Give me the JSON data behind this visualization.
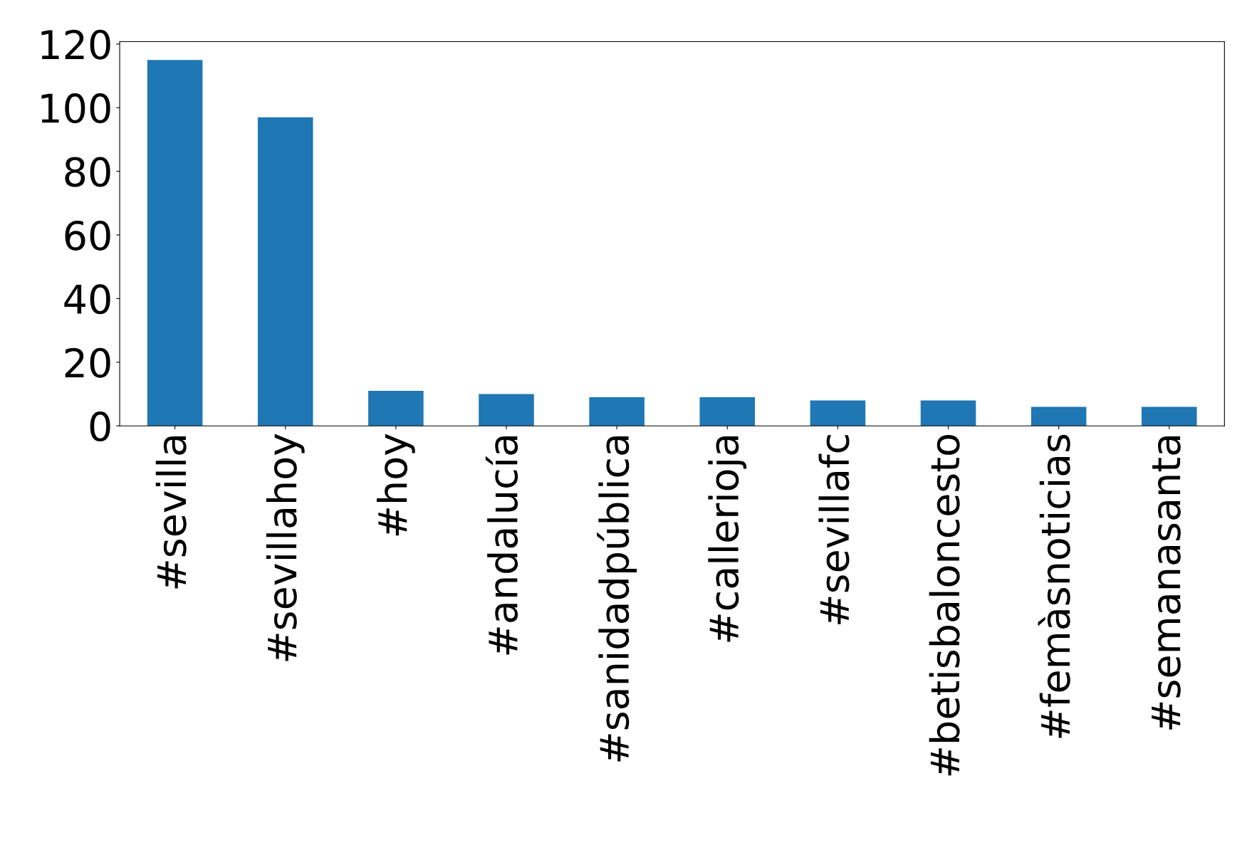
{
  "chart_data": {
    "type": "bar",
    "categories": [
      "#sevilla",
      "#sevillahoy",
      "#hoy",
      "#andalucía",
      "#sanidadpública",
      "#callerioja",
      "#sevillafc",
      "#betisbaloncesto",
      "#femàsnoticias",
      "#semanasanta"
    ],
    "values": [
      115,
      97,
      11,
      10,
      9,
      9,
      8,
      8,
      6,
      6
    ],
    "color": "#1f77b4",
    "ylim": [
      0,
      120.75
    ],
    "yticks": [
      0,
      20,
      40,
      60,
      80,
      100,
      120
    ],
    "grid": false
  }
}
